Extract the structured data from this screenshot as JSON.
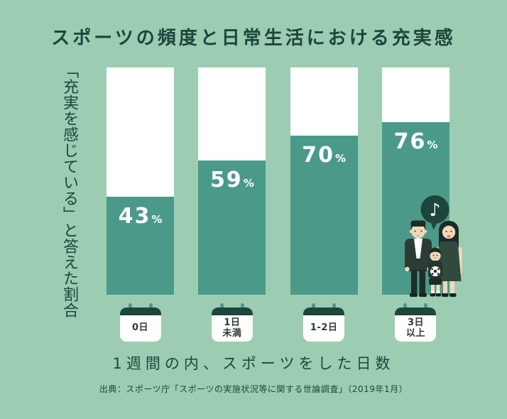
{
  "colors": {
    "background": "#9ccdb2",
    "bar_fill": "#4b9a89",
    "bar_empty": "#ffffff",
    "accent_dark": "#1d463c"
  },
  "chart_data": {
    "type": "bar",
    "title": "スポーツの頻度と日常生活における充実感",
    "ylabel": "「充実を感じている」と答えた割合",
    "xlabel": "1週間の内、スポーツをした日数",
    "categories": [
      "0日",
      "1日未満",
      "1-2日",
      "3日以上"
    ],
    "category_lines": [
      "0日",
      "1日\n未満",
      "1-2日",
      "3日\n以上"
    ],
    "values": [
      43,
      59,
      70,
      76
    ],
    "unit": "%",
    "ylim": [
      0,
      100
    ],
    "source": "出典：スポーツ庁「スポーツの実施状況等に関する世論調査」（2019年1月）"
  },
  "icons": {
    "music_note": "♪"
  }
}
